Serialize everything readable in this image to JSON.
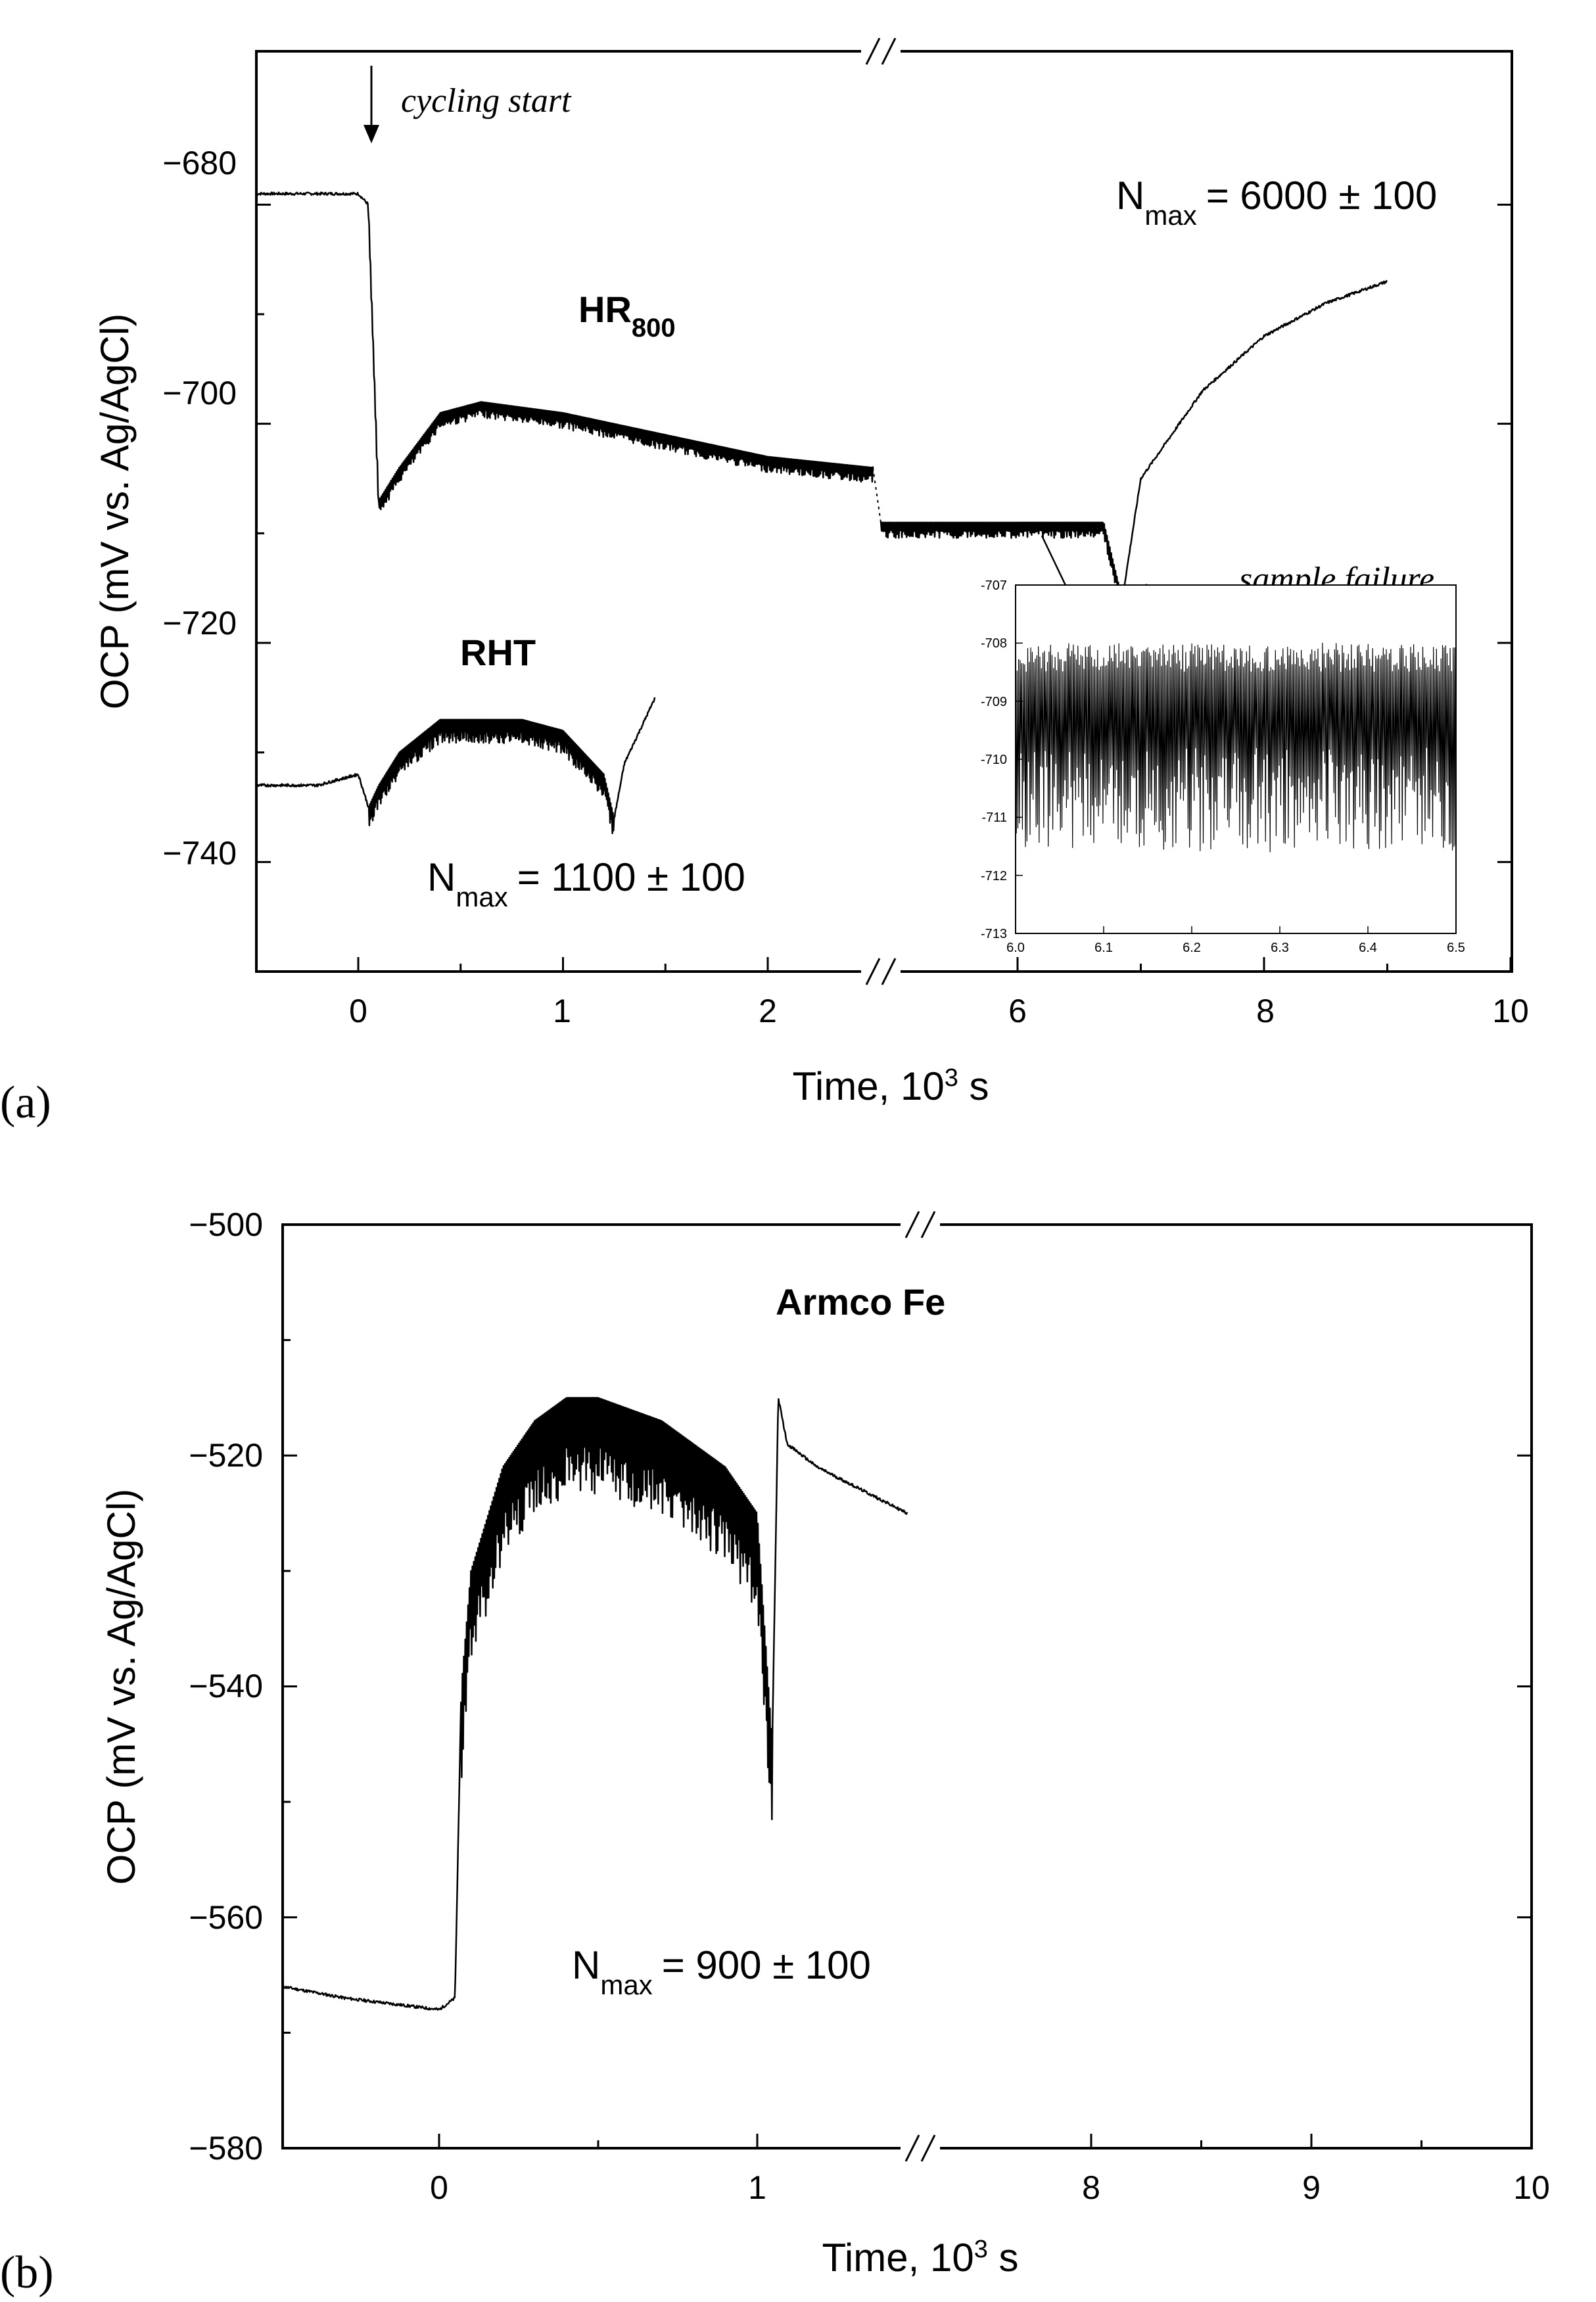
{
  "chart_data": [
    {
      "panel": "(a)",
      "type": "line",
      "xlabel": "Time, 10³ s",
      "ylabel": "OCP (mV vs. Ag/AgCl)",
      "ylim": [
        -750,
        -666
      ],
      "axis_break": "between 2.5 and 5 (×10³ s)",
      "x_ticks": [
        "0",
        "1",
        "2",
        "6",
        "8",
        "10"
      ],
      "y_ticks": [
        "-680",
        "-700",
        "-720",
        "-740"
      ],
      "annotations": [
        "cycling start",
        "sample failure"
      ],
      "series": [
        {
          "name": "HR800",
          "label": "HR",
          "label_sub": "800",
          "nmax_label": "N",
          "nmax_sub": "max",
          "nmax_value": "= 6000 ± 100",
          "x": [
            -0.5,
            0,
            0.05,
            0.1,
            0.2,
            0.4,
            0.6,
            1.0,
            1.5,
            2.0,
            2.5,
            5.0,
            6.0,
            6.7,
            6.85,
            7.0,
            7.5,
            8.0,
            8.5,
            9.0
          ],
          "y": [
            -679,
            -679,
            -680,
            -707,
            -704,
            -699,
            -698,
            -699,
            -701,
            -703,
            -704,
            -709,
            -709,
            -709,
            -716,
            -705,
            -697,
            -692,
            -689,
            -687
          ],
          "ripple": 1.2
        },
        {
          "name": "RHT",
          "label": "RHT",
          "nmax_label": "N",
          "nmax_sub": "max",
          "nmax_value": "= 1100 ± 100",
          "x": [
            -0.5,
            -0.2,
            0,
            0.05,
            0.1,
            0.2,
            0.4,
            0.6,
            0.8,
            1.0,
            1.2,
            1.25,
            1.3,
            1.45
          ],
          "y": [
            -733,
            -733,
            -732,
            -735,
            -733,
            -730,
            -727,
            -727,
            -727,
            -728,
            -732,
            -736,
            -731,
            -725
          ],
          "ripple": 1.8
        }
      ],
      "inset": {
        "type": "line",
        "xlim": [
          6.0,
          6.5
        ],
        "ylim": [
          -713,
          -707
        ],
        "x_ticks": [
          "6.0",
          "6.1",
          "6.2",
          "6.3",
          "6.4",
          "6.5"
        ],
        "y_ticks": [
          "-707",
          "-708",
          "-709",
          "-710",
          "-711",
          "-712",
          "-713"
        ],
        "baseline": -708.6,
        "cycle_period": 0.00345,
        "max": -708.0,
        "min_range": [
          -711.6,
          -709.8
        ]
      }
    },
    {
      "panel": "(b)",
      "type": "line",
      "xlabel": "Time, 10³ s",
      "ylabel": "OCP (mV vs. Ag/AgCl)",
      "ylim": [
        -580,
        -500
      ],
      "axis_break": "between 1.5 and 7 (×10³ s)",
      "x_ticks": [
        "0",
        "1",
        "8",
        "9",
        "10"
      ],
      "y_ticks": [
        "-500",
        "-520",
        "-540",
        "-560",
        "-580"
      ],
      "series": [
        {
          "name": "Armco Fe",
          "label": "Armco Fe",
          "nmax_label": "N",
          "nmax_sub": "max",
          "nmax_value": "= 900 ± 100",
          "x": [
            -0.5,
            -0.3,
            0,
            0.05,
            0.07,
            0.1,
            0.2,
            0.3,
            0.4,
            0.5,
            0.7,
            0.9,
            1.0,
            1.05,
            1.07,
            1.1,
            1.2,
            1.35,
            1.5
          ],
          "y": [
            -566,
            -567,
            -568,
            -567,
            -540,
            -530,
            -521,
            -517,
            -515,
            -515,
            -517,
            -521,
            -525,
            -545,
            -515,
            -519,
            -521,
            -523,
            -525
          ],
          "ripple": 7
        }
      ]
    }
  ],
  "panels": {
    "a": "(a)",
    "b": "(b)"
  },
  "xlabel_base": "Time, 10",
  "xlabel_sup": "3",
  "xlabel_unit": " s"
}
